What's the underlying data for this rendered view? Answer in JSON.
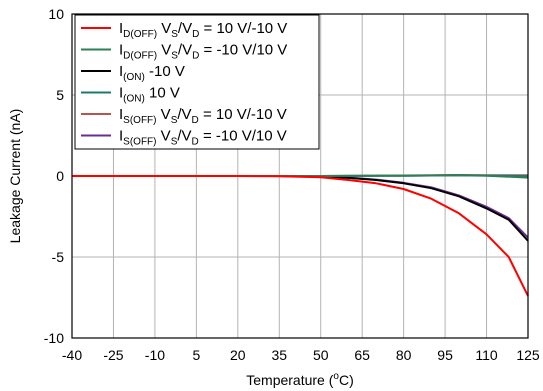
{
  "chart_data": {
    "type": "line",
    "title": "",
    "xlabel": "Temperature (°C)",
    "xlabel_parts": {
      "prefix": "Temperature (",
      "sup": "o",
      "suffix": "C)"
    },
    "ylabel": "Leakage Current (nA)",
    "x": [
      -40,
      -25,
      -10,
      5,
      20,
      35,
      50,
      65,
      80,
      95,
      110,
      125
    ],
    "xlim": [
      -40,
      125
    ],
    "ylim": [
      -10,
      10
    ],
    "x_ticks": [
      "-40",
      "-25",
      "-10",
      "5",
      "20",
      "35",
      "50",
      "65",
      "80",
      "95",
      "110",
      "125"
    ],
    "y_ticks": [
      "10",
      "5",
      "0",
      "-5",
      "-10"
    ],
    "grid": true,
    "legend_position": "top-left",
    "series": [
      {
        "name": "ID(OFF) VS/VD = 10 V/-10 V",
        "label_parts": [
          [
            "I",
            ""
          ],
          [
            "D(OFF)",
            "sub"
          ],
          [
            " V",
            ""
          ],
          [
            "S",
            "sub"
          ],
          [
            "/V",
            ""
          ],
          [
            "D",
            "sub"
          ],
          [
            " = 10 V/-10 V",
            ""
          ]
        ],
        "color": "#ff0000",
        "points": [
          [
            -40,
            0
          ],
          [
            20,
            0
          ],
          [
            35,
            -0.02
          ],
          [
            50,
            -0.08
          ],
          [
            60,
            -0.25
          ],
          [
            70,
            -0.45
          ],
          [
            80,
            -0.8
          ],
          [
            90,
            -1.4
          ],
          [
            100,
            -2.3
          ],
          [
            110,
            -3.6
          ],
          [
            118,
            -5.0
          ],
          [
            125,
            -7.4
          ]
        ]
      },
      {
        "name": "ID(OFF) VS/VD = -10 V/10 V",
        "label_parts": [
          [
            "I",
            ""
          ],
          [
            "D(OFF)",
            "sub"
          ],
          [
            " V",
            ""
          ],
          [
            "S",
            "sub"
          ],
          [
            "/V",
            ""
          ],
          [
            "D",
            "sub"
          ],
          [
            " = -10 V/10 V",
            ""
          ]
        ],
        "color": "#2e7d5b",
        "points": [
          [
            -40,
            0
          ],
          [
            50,
            0
          ],
          [
            80,
            0.02
          ],
          [
            100,
            0.05
          ],
          [
            110,
            0.02
          ],
          [
            125,
            -0.1
          ]
        ]
      },
      {
        "name": "I(ON) -10 V",
        "label_parts": [
          [
            "I",
            ""
          ],
          [
            "(ON)",
            "sub"
          ],
          [
            " -10 V",
            ""
          ]
        ],
        "color": "#000000",
        "points": [
          [
            -40,
            0
          ],
          [
            35,
            0
          ],
          [
            50,
            -0.05
          ],
          [
            60,
            -0.12
          ],
          [
            70,
            -0.25
          ],
          [
            80,
            -0.45
          ],
          [
            90,
            -0.75
          ],
          [
            100,
            -1.25
          ],
          [
            110,
            -2.0
          ],
          [
            118,
            -2.7
          ],
          [
            125,
            -4.0
          ]
        ]
      },
      {
        "name": "I(ON) 10 V",
        "label_parts": [
          [
            "I",
            ""
          ],
          [
            "(ON)",
            "sub"
          ],
          [
            " 10 V",
            ""
          ]
        ],
        "color": "#1d7a6e",
        "points": [
          [
            -40,
            0
          ],
          [
            50,
            0
          ],
          [
            80,
            0.02
          ],
          [
            100,
            0.05
          ],
          [
            110,
            0.03
          ],
          [
            125,
            0.0
          ]
        ]
      },
      {
        "name": "IS(OFF) VS/VD = 10 V/-10 V",
        "label_parts": [
          [
            "I",
            ""
          ],
          [
            "S(OFF)",
            "sub"
          ],
          [
            " V",
            ""
          ],
          [
            "S",
            "sub"
          ],
          [
            "/V",
            ""
          ],
          [
            "D",
            "sub"
          ],
          [
            " = 10 V/-10 V",
            ""
          ]
        ],
        "color": "#b85450",
        "points": [
          [
            -40,
            0
          ],
          [
            50,
            0
          ],
          [
            80,
            0.03
          ],
          [
            100,
            0.06
          ],
          [
            110,
            0.05
          ],
          [
            125,
            0.05
          ]
        ]
      },
      {
        "name": "IS(OFF) VS/VD = -10 V/10 V",
        "label_parts": [
          [
            "I",
            ""
          ],
          [
            "S(OFF)",
            "sub"
          ],
          [
            " V",
            ""
          ],
          [
            "S",
            "sub"
          ],
          [
            "/V",
            ""
          ],
          [
            "D",
            "sub"
          ],
          [
            " = -10 V/10 V",
            ""
          ]
        ],
        "color": "#6a2c91",
        "points": [
          [
            -40,
            0
          ],
          [
            35,
            0
          ],
          [
            50,
            -0.04
          ],
          [
            60,
            -0.1
          ],
          [
            70,
            -0.22
          ],
          [
            80,
            -0.42
          ],
          [
            90,
            -0.7
          ],
          [
            100,
            -1.2
          ],
          [
            110,
            -1.9
          ],
          [
            118,
            -2.6
          ],
          [
            125,
            -3.8
          ]
        ]
      }
    ]
  }
}
